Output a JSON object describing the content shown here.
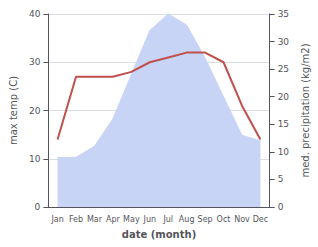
{
  "chart_data": {
    "type": "line",
    "categories": [
      "Jan",
      "Feb",
      "Mar",
      "Apr",
      "May",
      "Jun",
      "Jul",
      "Aug",
      "Sep",
      "Oct",
      "Nov",
      "Dec"
    ],
    "series": [
      {
        "type": "area",
        "color": "#c8d4f5",
        "axis": "y2",
        "values": [
          9,
          9,
          11,
          16,
          24,
          32,
          35,
          33,
          27,
          20,
          13,
          12
        ]
      },
      {
        "type": "line",
        "color": "#c0504d",
        "values": [
          14,
          27,
          27,
          27,
          28,
          30,
          31,
          32,
          32,
          30,
          21,
          14
        ]
      }
    ],
    "xlabel": "date (month)",
    "ylabel": "max temp (C)",
    "y2label": "med. precipitation (kg/m2)",
    "ylim": [
      0,
      40
    ],
    "yticks": [
      0,
      10,
      20,
      30,
      40
    ],
    "y2lim": [
      0,
      35
    ],
    "y2ticks": [
      0,
      5,
      10,
      15,
      20,
      25,
      30,
      35
    ],
    "grid": true
  }
}
